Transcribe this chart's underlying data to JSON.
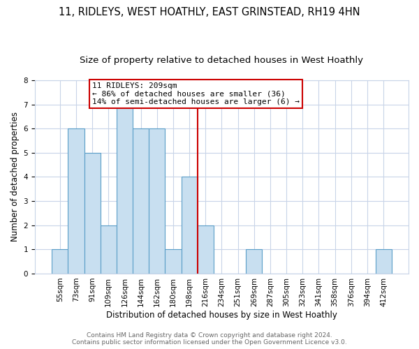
{
  "title": "11, RIDLEYS, WEST HOATHLY, EAST GRINSTEAD, RH19 4HN",
  "subtitle": "Size of property relative to detached houses in West Hoathly",
  "xlabel": "Distribution of detached houses by size in West Hoathly",
  "ylabel": "Number of detached properties",
  "bin_labels": [
    "55sqm",
    "73sqm",
    "91sqm",
    "109sqm",
    "126sqm",
    "144sqm",
    "162sqm",
    "180sqm",
    "198sqm",
    "216sqm",
    "234sqm",
    "251sqm",
    "269sqm",
    "287sqm",
    "305sqm",
    "323sqm",
    "341sqm",
    "358sqm",
    "376sqm",
    "394sqm",
    "412sqm"
  ],
  "bar_heights": [
    1,
    6,
    5,
    2,
    7,
    6,
    6,
    1,
    4,
    2,
    0,
    0,
    1,
    0,
    0,
    0,
    0,
    0,
    0,
    0,
    1
  ],
  "bar_color": "#c8dff0",
  "bar_edge_color": "#5a9ec8",
  "subject_line_color": "#cc0000",
  "annotation_title": "11 RIDLEYS: 209sqm",
  "annotation_line1": "← 86% of detached houses are smaller (36)",
  "annotation_line2": "14% of semi-detached houses are larger (6) →",
  "annotation_box_color": "#ffffff",
  "annotation_box_edge_color": "#cc0000",
  "ylim": [
    0,
    8
  ],
  "yticks": [
    0,
    1,
    2,
    3,
    4,
    5,
    6,
    7,
    8
  ],
  "footer_line1": "Contains HM Land Registry data © Crown copyright and database right 2024.",
  "footer_line2": "Contains public sector information licensed under the Open Government Licence v3.0.",
  "background_color": "#ffffff",
  "grid_color": "#c8d4e8",
  "title_fontsize": 10.5,
  "subtitle_fontsize": 9.5,
  "axis_label_fontsize": 8.5,
  "tick_fontsize": 7.5,
  "footer_fontsize": 6.5
}
